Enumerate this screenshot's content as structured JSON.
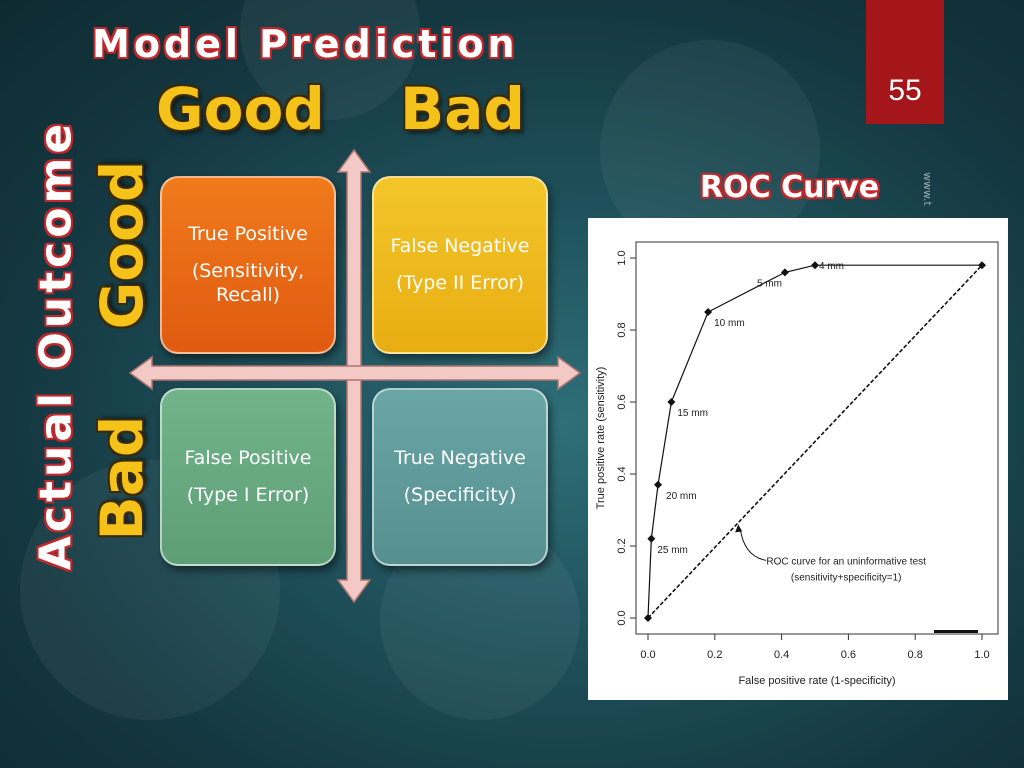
{
  "slide": {
    "number": "55",
    "model_prediction": "Model Prediction",
    "actual_outcome": "Actual Outcome",
    "col_labels": [
      "Good",
      "Bad"
    ],
    "row_labels": [
      "Good",
      "Bad"
    ],
    "quadrants": {
      "tp": {
        "line1": "True Positive",
        "line2": "(Sensitivity, Recall)"
      },
      "fn": {
        "line1": "False Negative",
        "line2": "(Type II Error)"
      },
      "fp": {
        "line1": "False Positive",
        "line2": "(Type I Error)"
      },
      "tn": {
        "line1": "True Negative",
        "line2": "(Specificity)"
      }
    },
    "roc_title": "ROC Curve",
    "watermark": "www.t"
  },
  "colors": {
    "slide_number_bg": "#a5161b",
    "title_outline": "#c2272b",
    "label_yellow": "#f5c21a",
    "tp": "#e8661a",
    "fn": "#edb81f",
    "fp": "#66a97f",
    "tn": "#5f9a9b",
    "axis_arrow": "#f2c9c4"
  },
  "chart_data": {
    "type": "line",
    "title": "",
    "xlabel": "False positive rate (1-specificity)",
    "ylabel": "True positive rate (sensitivity)",
    "xlim": [
      0,
      1
    ],
    "ylim": [
      0,
      1
    ],
    "x_ticks": [
      "0.0",
      "0.2",
      "0.4",
      "0.6",
      "0.8",
      "1.0"
    ],
    "y_ticks": [
      "0.0",
      "0.2",
      "0.4",
      "0.6",
      "0.8",
      "1.0"
    ],
    "grid": false,
    "series": [
      {
        "points": [
          {
            "x": 0.0,
            "y": 0.0,
            "label": ""
          },
          {
            "x": 0.01,
            "y": 0.22,
            "label": "25 mm"
          },
          {
            "x": 0.03,
            "y": 0.37,
            "label": "20 mm"
          },
          {
            "x": 0.07,
            "y": 0.6,
            "label": "15 mm"
          },
          {
            "x": 0.18,
            "y": 0.85,
            "label": "10 mm"
          },
          {
            "x": 0.41,
            "y": 0.96,
            "label": "5 mm"
          },
          {
            "x": 0.5,
            "y": 0.98,
            "label": "4 mm"
          },
          {
            "x": 1.0,
            "y": 0.98,
            "label": ""
          }
        ]
      },
      {
        "style": "dashed",
        "points": [
          {
            "x": 0.0,
            "y": 0.0
          },
          {
            "x": 1.0,
            "y": 0.98
          }
        ]
      }
    ],
    "annotation": {
      "lines": [
        "ROC curve for an uninformative test",
        "(sensitivity+specificity=1)"
      ],
      "points_to": {
        "x": 0.27,
        "y": 0.26
      }
    }
  }
}
